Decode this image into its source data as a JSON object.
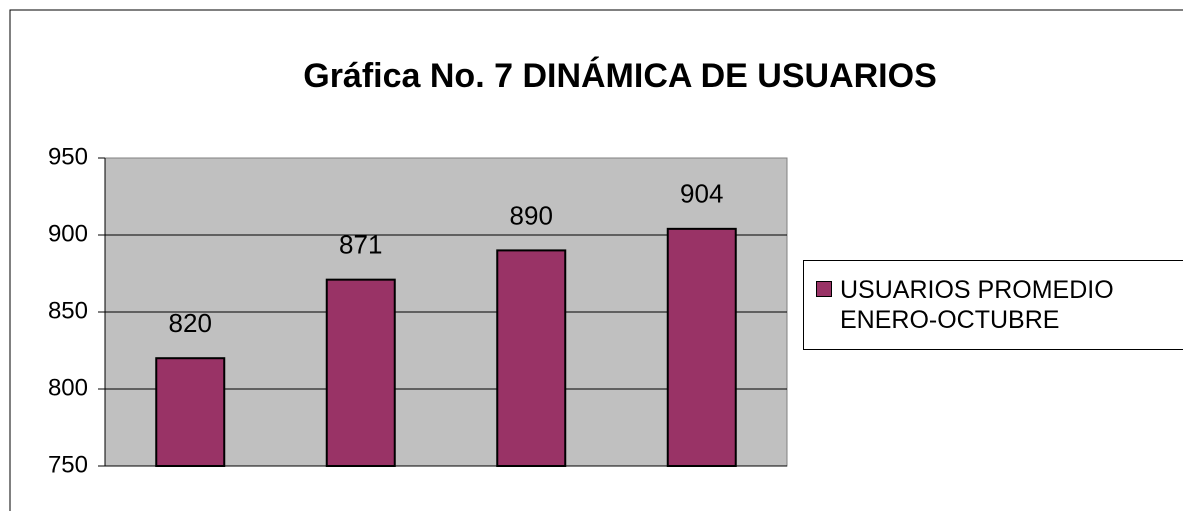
{
  "chart_data": {
    "type": "bar",
    "title": "Gráfica No. 7 DINÁMICA DE USUARIOS",
    "categories": [
      null,
      null,
      null,
      null
    ],
    "series": [
      {
        "name": "USUARIOS PROMEDIO ENERO-OCTUBRE",
        "color": "#993366",
        "values": [
          820,
          871,
          890,
          904
        ]
      }
    ],
    "ylim": [
      750,
      950
    ],
    "yticks": [
      750,
      800,
      850,
      900,
      950
    ],
    "grid": true,
    "legend": "right"
  }
}
